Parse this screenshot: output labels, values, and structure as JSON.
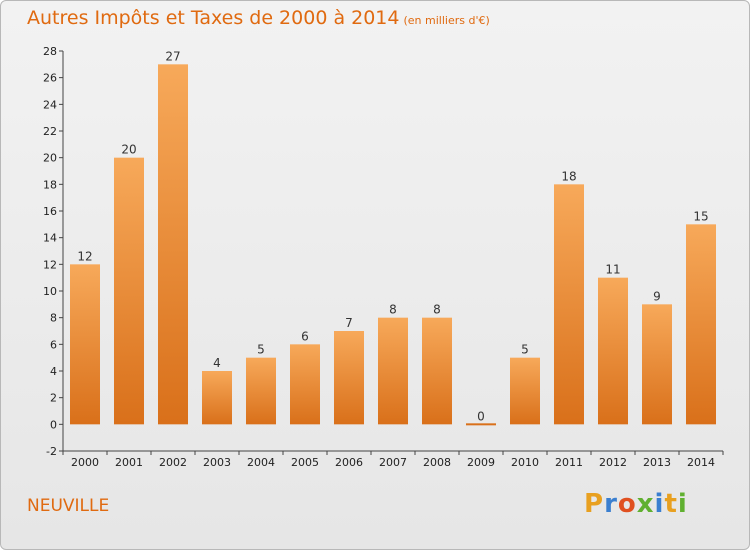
{
  "title": "Autres Impôts et Taxes de 2000 à 2014",
  "subtitle": "(en milliers d'€)",
  "place": "NEUVILLE",
  "logo": {
    "text": "Proxiti",
    "colors": [
      "#e8a020",
      "#3a7fd0",
      "#e05020",
      "#60b030",
      "#3a7fd0",
      "#e8a020",
      "#60b030"
    ]
  },
  "colors": {
    "accent": "#e06a10",
    "bar_top": "#f7a95a",
    "bar_bottom": "#d9701a",
    "zero_bar": "#d9701a"
  },
  "chart_data": {
    "type": "bar",
    "categories": [
      "2000",
      "2001",
      "2002",
      "2003",
      "2004",
      "2005",
      "2006",
      "2007",
      "2008",
      "2009",
      "2010",
      "2011",
      "2012",
      "2013",
      "2014"
    ],
    "values": [
      12,
      20,
      27,
      4,
      5,
      6,
      7,
      8,
      8,
      0,
      5,
      18,
      11,
      9,
      15
    ],
    "title": "Autres Impôts et Taxes de 2000 à 2014",
    "subtitle": "(en milliers d'€)",
    "xlabel": "",
    "ylabel": "",
    "ylim": [
      -2,
      28
    ],
    "yticks": [
      -2,
      0,
      2,
      4,
      6,
      8,
      10,
      12,
      14,
      16,
      18,
      20,
      22,
      24,
      26,
      28
    ],
    "grid": false,
    "legend": "none"
  }
}
